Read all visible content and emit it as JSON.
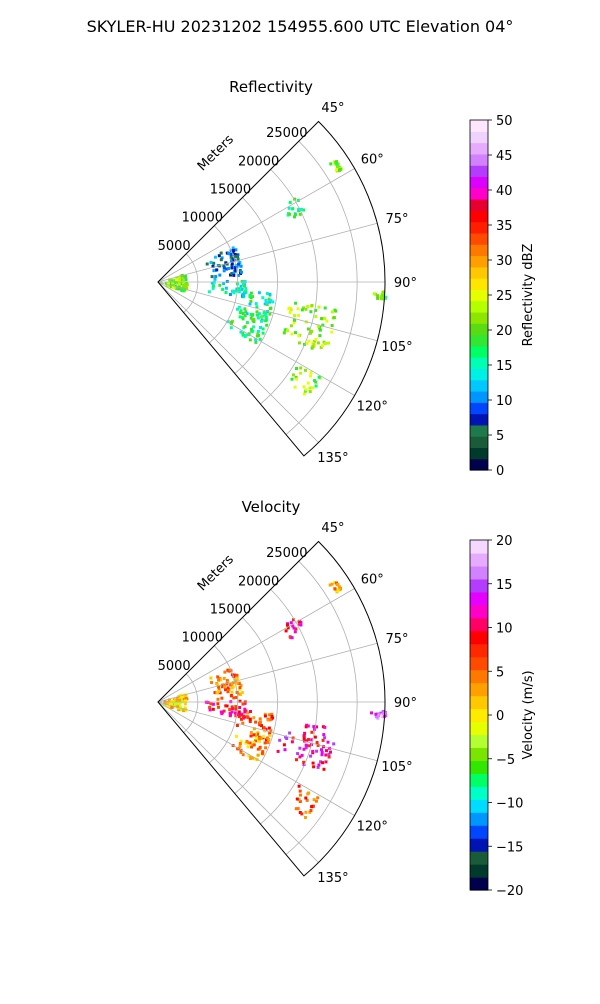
{
  "figure": {
    "title": "SKYLER-HU  20231202  154955.600 UTC Elevation 04°"
  },
  "chart_data": [
    {
      "type": "polar-sector",
      "title": "Reflectivity",
      "radial_label": "Meters",
      "radial_ticks": [
        5000,
        10000,
        15000,
        20000,
        25000
      ],
      "radial_tick_labels": [
        "5000",
        "10000",
        "15000",
        "20000",
        "25000"
      ],
      "rmax": 28500,
      "theta_range_deg": [
        45,
        140
      ],
      "theta_ticks": [
        45,
        60,
        75,
        90,
        105,
        120,
        135
      ],
      "theta_tick_labels": [
        "45°",
        "60°",
        "75°",
        "90°",
        "105°",
        "120°",
        "135°"
      ],
      "grid": true,
      "colorbar": {
        "label": "Reflectivity dBZ",
        "min": 0,
        "max": 50,
        "ticks": [
          0,
          5,
          10,
          15,
          20,
          25,
          30,
          35,
          40,
          45,
          50
        ],
        "tick_labels": [
          "0",
          "5",
          "10",
          "15",
          "20",
          "25",
          "30",
          "35",
          "40",
          "45",
          "50"
        ]
      },
      "echo_regions": [
        {
          "azimuth_deg": [
            70,
            108
          ],
          "range_m": [
            0,
            3500
          ],
          "value": 21
        },
        {
          "azimuth_deg": [
            63,
            86
          ],
          "range_m": [
            6000,
            10500
          ],
          "value": 9
        },
        {
          "azimuth_deg": [
            88,
            100
          ],
          "range_m": [
            5500,
            11000
          ],
          "value": 14
        },
        {
          "azimuth_deg": [
            95,
            110
          ],
          "range_m": [
            10000,
            14500
          ],
          "value": 16
        },
        {
          "azimuth_deg": [
            98,
            113
          ],
          "range_m": [
            15500,
            22500
          ],
          "value": 22
        },
        {
          "azimuth_deg": [
            106,
            122
          ],
          "range_m": [
            9500,
            14500
          ],
          "value": 18
        },
        {
          "azimuth_deg": [
            120,
            128
          ],
          "range_m": [
            19500,
            23500
          ],
          "value": 21
        },
        {
          "azimuth_deg": [
            58,
            64
          ],
          "range_m": [
            18000,
            20500
          ],
          "value": 17
        },
        {
          "azimuth_deg": [
            55,
            58
          ],
          "range_m": [
            26000,
            27000
          ],
          "value": 21
        },
        {
          "azimuth_deg": [
            92,
            94
          ],
          "range_m": [
            26500,
            28500
          ],
          "value": 20
        }
      ]
    },
    {
      "type": "polar-sector",
      "title": "Velocity",
      "radial_label": "Meters",
      "radial_ticks": [
        5000,
        10000,
        15000,
        20000,
        25000
      ],
      "radial_tick_labels": [
        "5000",
        "10000",
        "15000",
        "20000",
        "25000"
      ],
      "rmax": 28500,
      "theta_range_deg": [
        45,
        140
      ],
      "theta_ticks": [
        45,
        60,
        75,
        90,
        105,
        120,
        135
      ],
      "theta_tick_labels": [
        "45°",
        "60°",
        "75°",
        "90°",
        "105°",
        "120°",
        "135°"
      ],
      "grid": true,
      "colorbar": {
        "label": "Velocity (m/s)",
        "min": -20,
        "max": 20,
        "ticks": [
          -20,
          -15,
          -10,
          -5,
          0,
          5,
          10,
          15,
          20
        ],
        "tick_labels": [
          "−20",
          "−15",
          "−10",
          "−5",
          "0",
          "5",
          "10",
          "15",
          "20"
        ]
      },
      "echo_regions": [
        {
          "azimuth_deg": [
            70,
            108
          ],
          "range_m": [
            0,
            3500
          ],
          "value": 1
        },
        {
          "azimuth_deg": [
            63,
            86
          ],
          "range_m": [
            6000,
            10500
          ],
          "value": 4
        },
        {
          "azimuth_deg": [
            88,
            100
          ],
          "range_m": [
            5500,
            11000
          ],
          "value": 9
        },
        {
          "azimuth_deg": [
            95,
            110
          ],
          "range_m": [
            10000,
            14500
          ],
          "value": 6
        },
        {
          "azimuth_deg": [
            98,
            113
          ],
          "range_m": [
            15500,
            22500
          ],
          "value": 11
        },
        {
          "azimuth_deg": [
            106,
            122
          ],
          "range_m": [
            9500,
            14500
          ],
          "value": 3
        },
        {
          "azimuth_deg": [
            120,
            128
          ],
          "range_m": [
            19500,
            23500
          ],
          "value": 6
        },
        {
          "azimuth_deg": [
            58,
            64
          ],
          "range_m": [
            18000,
            20500
          ],
          "value": 10
        },
        {
          "azimuth_deg": [
            55,
            58
          ],
          "range_m": [
            26000,
            27000
          ],
          "value": 2
        },
        {
          "azimuth_deg": [
            92,
            94
          ],
          "range_m": [
            26500,
            28500
          ],
          "value": 15
        }
      ]
    }
  ],
  "colors": {
    "grid": "#b0b0b0",
    "frame": "#000000",
    "reflectivity_scale": [
      "#00004c",
      "#003a2c",
      "#1a5c3a",
      "#1e7a4a",
      "#0014b4",
      "#0046ff",
      "#0096ff",
      "#00c8ff",
      "#00f0e6",
      "#00ffb4",
      "#00ff64",
      "#32e632",
      "#5adc14",
      "#8ce600",
      "#b4ff00",
      "#e6ff00",
      "#ffe600",
      "#ffc800",
      "#ffa000",
      "#ff7800",
      "#ff4b00",
      "#ff1e00",
      "#ff0000",
      "#e60032",
      "#ff00c8",
      "#dc00ff",
      "#b43cff",
      "#d282ff",
      "#e6aaff",
      "#f0d2ff",
      "#ffe6ff"
    ],
    "velocity_scale": [
      "#00004c",
      "#003a2c",
      "#1a5c3a",
      "#0014b4",
      "#0046ff",
      "#0096ff",
      "#00dcff",
      "#00ffc8",
      "#00ff64",
      "#32e600",
      "#7ae600",
      "#b4ff32",
      "#e6ff00",
      "#ffeb00",
      "#ffc800",
      "#ffa000",
      "#ff7800",
      "#ff4b00",
      "#ff2800",
      "#ff0000",
      "#ff0064",
      "#ff00c8",
      "#e600ff",
      "#b43cff",
      "#d282ff",
      "#e6aaff",
      "#f5d7ff"
    ]
  }
}
